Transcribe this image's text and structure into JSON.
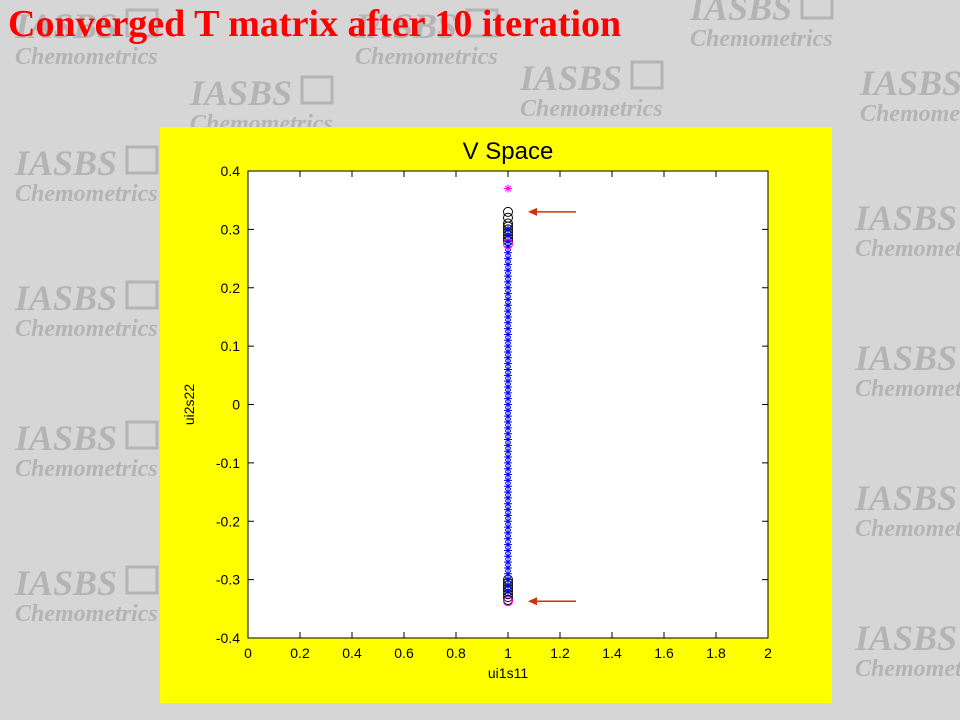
{
  "slide": {
    "title": "Converged T matrix after 10 iteration",
    "title_color": "#ff0000",
    "background_color": "#d6d6d6",
    "watermark": {
      "line1": "IASBS",
      "line2": "Chemometrics",
      "color": "#b4b4b4"
    }
  },
  "figure": {
    "background_color": "#ffff00"
  },
  "chart_data": {
    "type": "scatter",
    "title": "V Space",
    "xlabel": "ui1s11",
    "ylabel": "ui2s22",
    "xlim": [
      0,
      2
    ],
    "ylim": [
      -0.4,
      0.4
    ],
    "x_ticks": [
      "0",
      "0.2",
      "0.4",
      "0.6",
      "0.8",
      "1",
      "1.2",
      "1.4",
      "1.6",
      "1.8",
      "2"
    ],
    "y_ticks": [
      "0.4",
      "0.3",
      "0.2",
      "0.1",
      "0",
      "-0.1",
      "-0.2",
      "-0.3",
      "-0.4"
    ],
    "grid": false,
    "series": [
      {
        "marker": "circle",
        "color": "#000000",
        "x": 1,
        "y": [
          0.33,
          0.32,
          0.31,
          0.305,
          0.3,
          0.295,
          0.29,
          0.285,
          0.28,
          -0.3,
          -0.305,
          -0.31,
          -0.315,
          -0.32,
          -0.325,
          -0.33,
          -0.335
        ]
      },
      {
        "marker": "star",
        "color": "#0000ff",
        "x": 1,
        "y_range": [
          -0.32,
          0.3
        ],
        "y_step": 0.01
      },
      {
        "marker": "star",
        "color": "#ff00ff",
        "x": 1,
        "y": [
          0.37
        ]
      },
      {
        "marker": "circle",
        "color": "#ff00ff",
        "x": 1,
        "y": [
          0.275,
          -0.337
        ]
      }
    ],
    "annotations": [
      {
        "type": "arrow",
        "color": "#cc3300",
        "points_to": [
          1,
          0.33
        ]
      },
      {
        "type": "arrow",
        "color": "#cc3300",
        "points_to": [
          1,
          -0.337
        ]
      }
    ]
  }
}
